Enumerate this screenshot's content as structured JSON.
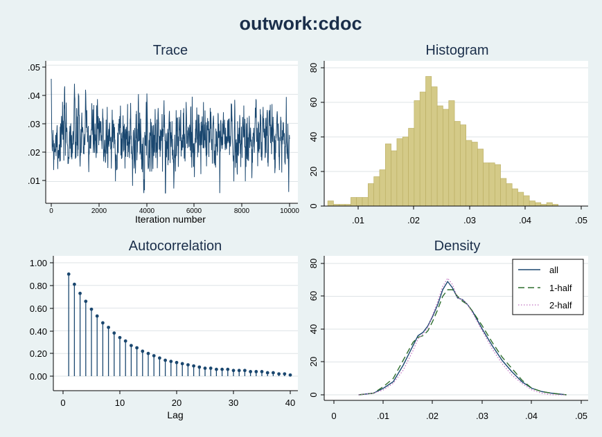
{
  "title": "outwork:cdoc",
  "colors": {
    "background": "#eaf2f3",
    "plot_bg": "#ffffff",
    "trace": "#1a476f",
    "histogram_fill": "#d4ca88",
    "histogram_edge": "#b8ac5f",
    "autocorr": "#1a476f",
    "density_all": "#1a476f",
    "density_half1": "#2d6d2d",
    "density_half2": "#c070c0",
    "grid": "#dde3e6"
  },
  "chart_data": [
    {
      "id": "trace",
      "type": "line",
      "title": "Trace",
      "xlabel": "Iteration number",
      "ylabel": "",
      "xlim": [
        0,
        10000
      ],
      "ylim": [
        0.0025,
        0.0515
      ],
      "xticks": [
        "0",
        "2000",
        "4000",
        "6000",
        "8000",
        "10000"
      ],
      "yticks": [
        ".01",
        ".02",
        ".03",
        ".04",
        ".05"
      ],
      "n_draws": 10000,
      "mean": 0.025,
      "sd": 0.006,
      "min": 0.006,
      "max": 0.046,
      "grid": true
    },
    {
      "id": "histogram",
      "type": "bar",
      "title": "Histogram",
      "xlim": [
        0,
        0.05
      ],
      "ylim": [
        0,
        80
      ],
      "xticks": [
        ".01",
        ".02",
        ".03",
        ".04",
        ".05"
      ],
      "yticks": [
        "0",
        "20",
        "40",
        "60",
        "80"
      ],
      "bin_width": 0.001,
      "bin_starts": [
        0.006,
        0.007,
        0.008,
        0.009,
        0.01,
        0.011,
        0.012,
        0.013,
        0.014,
        0.015,
        0.016,
        0.017,
        0.018,
        0.019,
        0.02,
        0.021,
        0.022,
        0.023,
        0.024,
        0.025,
        0.026,
        0.027,
        0.028,
        0.029,
        0.03,
        0.031,
        0.032,
        0.033,
        0.034,
        0.035,
        0.036,
        0.037,
        0.038,
        0.039,
        0.04,
        0.041,
        0.042,
        0.043,
        0.044,
        0.045
      ],
      "values": [
        3,
        1,
        1,
        1,
        5,
        5,
        5,
        13,
        17,
        21,
        36,
        32,
        39,
        40,
        45,
        61,
        66,
        75,
        69,
        58,
        56,
        61,
        49,
        47,
        38,
        37,
        33,
        25,
        25,
        24,
        16,
        13,
        10,
        8,
        6,
        3,
        2,
        1,
        2,
        1
      ],
      "grid": true
    },
    {
      "id": "autocorrelation",
      "type": "scatter",
      "title": "Autocorrelation",
      "xlabel": "Lag",
      "xlim": [
        -1.5,
        41
      ],
      "ylim": [
        -0.1,
        1.05
      ],
      "xticks": [
        "0",
        "10",
        "20",
        "30",
        "40"
      ],
      "yticks": [
        "0.00",
        "0.20",
        "0.40",
        "0.60",
        "0.80",
        "1.00"
      ],
      "lags": [
        1,
        2,
        3,
        4,
        5,
        6,
        7,
        8,
        9,
        10,
        11,
        12,
        13,
        14,
        15,
        16,
        17,
        18,
        19,
        20,
        21,
        22,
        23,
        24,
        25,
        26,
        27,
        28,
        29,
        30,
        31,
        32,
        33,
        34,
        35,
        36,
        37,
        38,
        39,
        40
      ],
      "values": [
        0.9,
        0.81,
        0.73,
        0.66,
        0.59,
        0.53,
        0.47,
        0.43,
        0.38,
        0.34,
        0.31,
        0.27,
        0.25,
        0.22,
        0.2,
        0.18,
        0.16,
        0.14,
        0.13,
        0.12,
        0.11,
        0.1,
        0.09,
        0.08,
        0.07,
        0.07,
        0.06,
        0.06,
        0.06,
        0.05,
        0.05,
        0.05,
        0.04,
        0.04,
        0.04,
        0.03,
        0.03,
        0.02,
        0.02,
        0.01
      ],
      "grid": true
    },
    {
      "id": "density",
      "type": "line",
      "title": "Density",
      "xlim": [
        0,
        0.05
      ],
      "ylim": [
        -2,
        80
      ],
      "xticks": [
        "0",
        ".01",
        ".02",
        ".03",
        ".04",
        ".05"
      ],
      "yticks": [
        "0",
        "20",
        "40",
        "60",
        "80"
      ],
      "legend_position": "top-right",
      "x": [
        0.005,
        0.008,
        0.01,
        0.012,
        0.014,
        0.016,
        0.017,
        0.018,
        0.019,
        0.02,
        0.021,
        0.022,
        0.023,
        0.024,
        0.025,
        0.026,
        0.027,
        0.028,
        0.03,
        0.032,
        0.034,
        0.036,
        0.038,
        0.04,
        0.042,
        0.044,
        0.047
      ],
      "series": [
        {
          "name": "all",
          "style": "solid",
          "values": [
            0,
            1,
            4,
            8,
            18,
            30,
            36,
            38,
            42,
            48,
            55,
            64,
            69,
            65,
            59,
            58,
            55,
            51,
            40,
            30,
            21,
            14,
            8,
            4,
            2,
            1,
            0
          ]
        },
        {
          "name": "1-half",
          "style": "dashed",
          "values": [
            0,
            1,
            5,
            10,
            21,
            32,
            35,
            36,
            39,
            45,
            52,
            60,
            64,
            64,
            60,
            57,
            55,
            51,
            42,
            32,
            23,
            16,
            9,
            4,
            2,
            1,
            0
          ]
        },
        {
          "name": "2-half",
          "style": "dotted",
          "values": [
            0,
            1,
            3,
            7,
            15,
            27,
            34,
            37,
            41,
            49,
            57,
            66,
            71,
            67,
            59,
            58,
            55,
            50,
            39,
            28,
            19,
            12,
            7,
            3,
            1,
            0,
            0
          ]
        }
      ],
      "grid": true
    }
  ]
}
